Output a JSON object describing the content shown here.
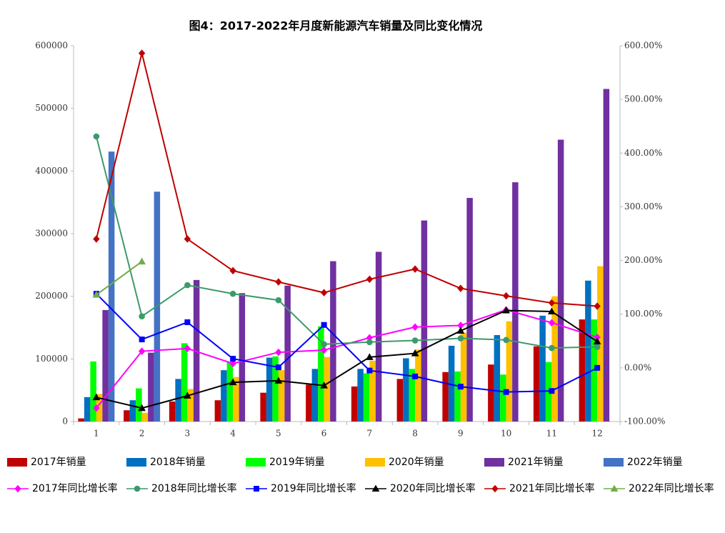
{
  "chart_data": {
    "type": "combo",
    "title": "图4：2017-2022年月度新能源汽车销量及同比变化情况",
    "categories": [
      "1",
      "2",
      "3",
      "4",
      "5",
      "6",
      "7",
      "8",
      "9",
      "10",
      "11",
      "12"
    ],
    "ylim": [
      0,
      600000
    ],
    "yticks": [
      0,
      100000,
      200000,
      300000,
      400000,
      500000,
      600000
    ],
    "y2lim": [
      -100,
      600
    ],
    "y2ticks": [
      {
        "value": -100,
        "label": "-100.00%"
      },
      {
        "value": 0,
        "label": "0.00%"
      },
      {
        "value": 100,
        "label": "100.00%"
      },
      {
        "value": 200,
        "label": "200.00%"
      },
      {
        "value": 300,
        "label": "300.00%"
      },
      {
        "value": 400,
        "label": "400.00%"
      },
      {
        "value": 500,
        "label": "500.00%"
      },
      {
        "value": 600,
        "label": "600.00%"
      }
    ],
    "grid": false,
    "series": [
      {
        "name": "2017年销量",
        "type": "bar",
        "color": "#c00000",
        "values": [
          5000,
          18000,
          32000,
          34000,
          46000,
          59000,
          56000,
          68000,
          79000,
          91000,
          120000,
          163000
        ]
      },
      {
        "name": "2018年销量",
        "type": "bar",
        "color": "#0070c0",
        "values": [
          39000,
          34000,
          68000,
          82000,
          102000,
          84000,
          84000,
          101000,
          121000,
          138000,
          169000,
          225000
        ]
      },
      {
        "name": "2019年销量",
        "type": "bar",
        "color": "#00ff00",
        "values": [
          96000,
          53000,
          125000,
          95000,
          104000,
          152000,
          77000,
          84000,
          80000,
          75000,
          95000,
          163000
        ]
      },
      {
        "name": "2020年销量",
        "type": "bar",
        "color": "#ffc000",
        "values": [
          44000,
          14000,
          52000,
          71000,
          82000,
          103000,
          97000,
          115000,
          142000,
          160000,
          200000,
          248000
        ]
      },
      {
        "name": "2021年销量",
        "type": "bar",
        "color": "#7030a0",
        "values": [
          178000,
          110000,
          226000,
          205000,
          217000,
          256000,
          271000,
          321000,
          357000,
          382000,
          450000,
          531000
        ]
      },
      {
        "name": "2022年销量",
        "type": "bar",
        "color": "#4472c4",
        "values": [
          431000,
          367000,
          null,
          null,
          null,
          null,
          null,
          null,
          null,
          null,
          null,
          null
        ]
      },
      {
        "name": "2017年同比增长率",
        "type": "line",
        "axis": "y2",
        "marker": "diamond",
        "color": "#ff00ff",
        "values": [
          -75,
          31,
          36,
          8,
          29,
          33,
          56,
          76,
          79,
          108,
          84,
          57
        ]
      },
      {
        "name": "2018年同比增长率",
        "type": "line",
        "axis": "y2",
        "marker": "circle",
        "color": "#3c9a6a",
        "values": [
          431,
          96,
          154,
          138,
          126,
          44,
          48,
          51,
          55,
          52,
          37,
          39
        ]
      },
      {
        "name": "2019年同比增长率",
        "type": "line",
        "axis": "y2",
        "marker": "square",
        "color": "#0000ff",
        "values": [
          138,
          53,
          85,
          17,
          1,
          80,
          -5,
          -16,
          -35,
          -45,
          -43,
          0
        ]
      },
      {
        "name": "2020年同比增长率",
        "type": "line",
        "axis": "y2",
        "marker": "triangle",
        "color": "#000000",
        "values": [
          -55,
          -75,
          -52,
          -27,
          -24,
          -33,
          20,
          27,
          69,
          107,
          105,
          49
        ]
      },
      {
        "name": "2021年同比增长率",
        "type": "line",
        "axis": "y2",
        "marker": "diamond",
        "color": "#c00000",
        "values": [
          240,
          586,
          240,
          181,
          160,
          140,
          165,
          184,
          148,
          134,
          121,
          115
        ]
      },
      {
        "name": "2022年同比增长率",
        "type": "line",
        "axis": "y2",
        "marker": "triangle",
        "color": "#70ad47",
        "values": [
          136,
          198,
          null,
          null,
          null,
          null,
          null,
          null,
          null,
          null,
          null,
          null
        ]
      }
    ]
  }
}
